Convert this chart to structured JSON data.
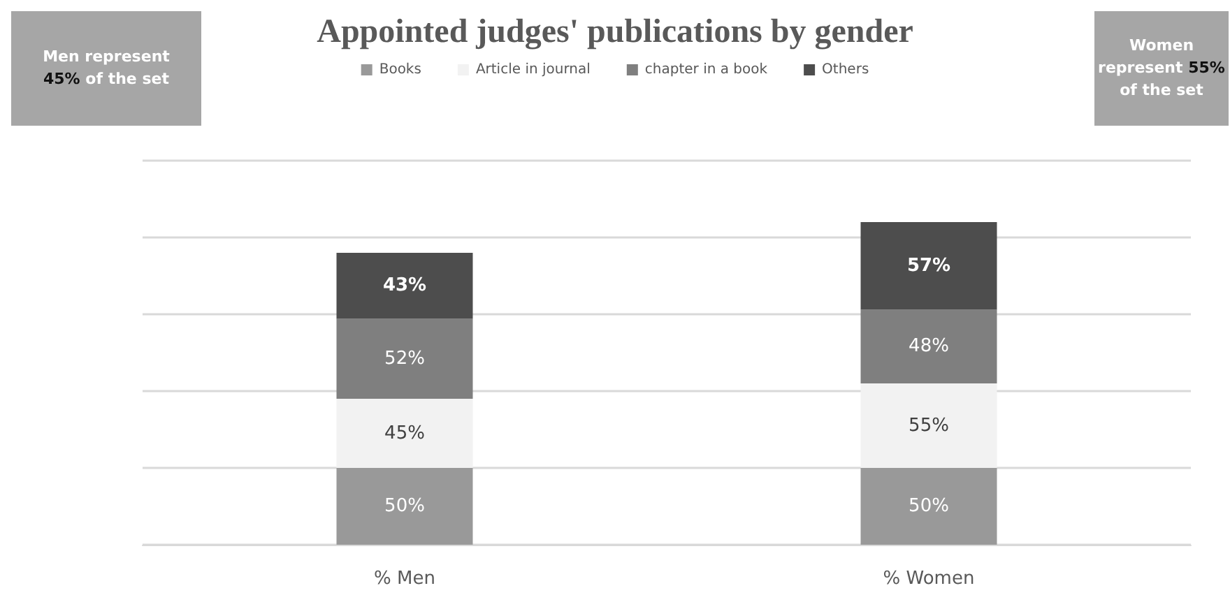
{
  "chart_data": {
    "type": "bar",
    "title": "Appointed judges' publications by gender",
    "categories": [
      "% Men",
      "% Women"
    ],
    "stacked": true,
    "grid": "y",
    "legend": "top",
    "tick_labels": "x",
    "series": [
      {
        "name": "Books",
        "color": "#999999",
        "values": [
          50,
          50
        ],
        "value_labels": [
          "50%",
          "50%"
        ]
      },
      {
        "name": "Article in journal",
        "color": "#f2f2f2",
        "values": [
          45,
          55
        ],
        "value_labels": [
          "45%",
          "55%"
        ]
      },
      {
        "name": "chapter in a book",
        "color": "#7f7f7f",
        "values": [
          52,
          48
        ],
        "value_labels": [
          "52%",
          "48%"
        ]
      },
      {
        "name": "Others",
        "color": "#4d4d4d",
        "values": [
          43,
          57
        ],
        "value_labels": [
          "43%",
          "57%"
        ]
      }
    ],
    "annotations": [
      "Men represent 45% of the set",
      "Women represent 55% of the set"
    ]
  }
}
